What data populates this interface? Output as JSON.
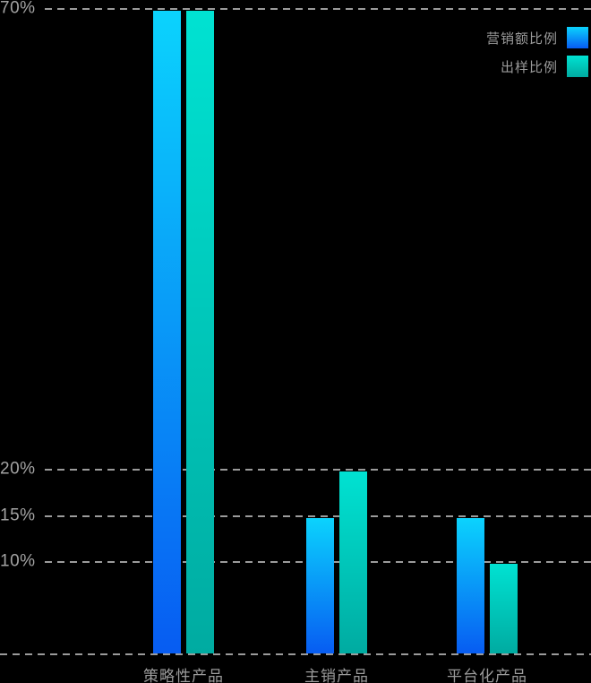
{
  "chart_data": {
    "type": "bar",
    "title": "",
    "xlabel": "",
    "ylabel": "",
    "categories": [
      "策略性产品",
      "主销产品",
      "平台化产品"
    ],
    "series": [
      {
        "name": "营销额比例",
        "values": [
          70,
          15,
          15
        ],
        "gradient_top": "#0bd3fd",
        "gradient_bottom": "#075cf2"
      },
      {
        "name": "出样比例",
        "values": [
          70,
          20,
          10
        ],
        "gradient_top": "#00e2d2",
        "gradient_bottom": "#00aba1"
      }
    ],
    "yticks": [
      {
        "value": 70,
        "label": "70%"
      },
      {
        "value": 20,
        "label": "20%"
      },
      {
        "value": 15,
        "label": "15%"
      },
      {
        "value": 10,
        "label": "10%"
      }
    ],
    "ylim": [
      0,
      70
    ],
    "grid": "horizontal-dashed",
    "legend_position": "top-right"
  },
  "colors": {
    "background": "#000000",
    "grid": "#9b9b9b",
    "axis_text": "#a3a3a3",
    "legend_text": "#9b9b9b"
  }
}
